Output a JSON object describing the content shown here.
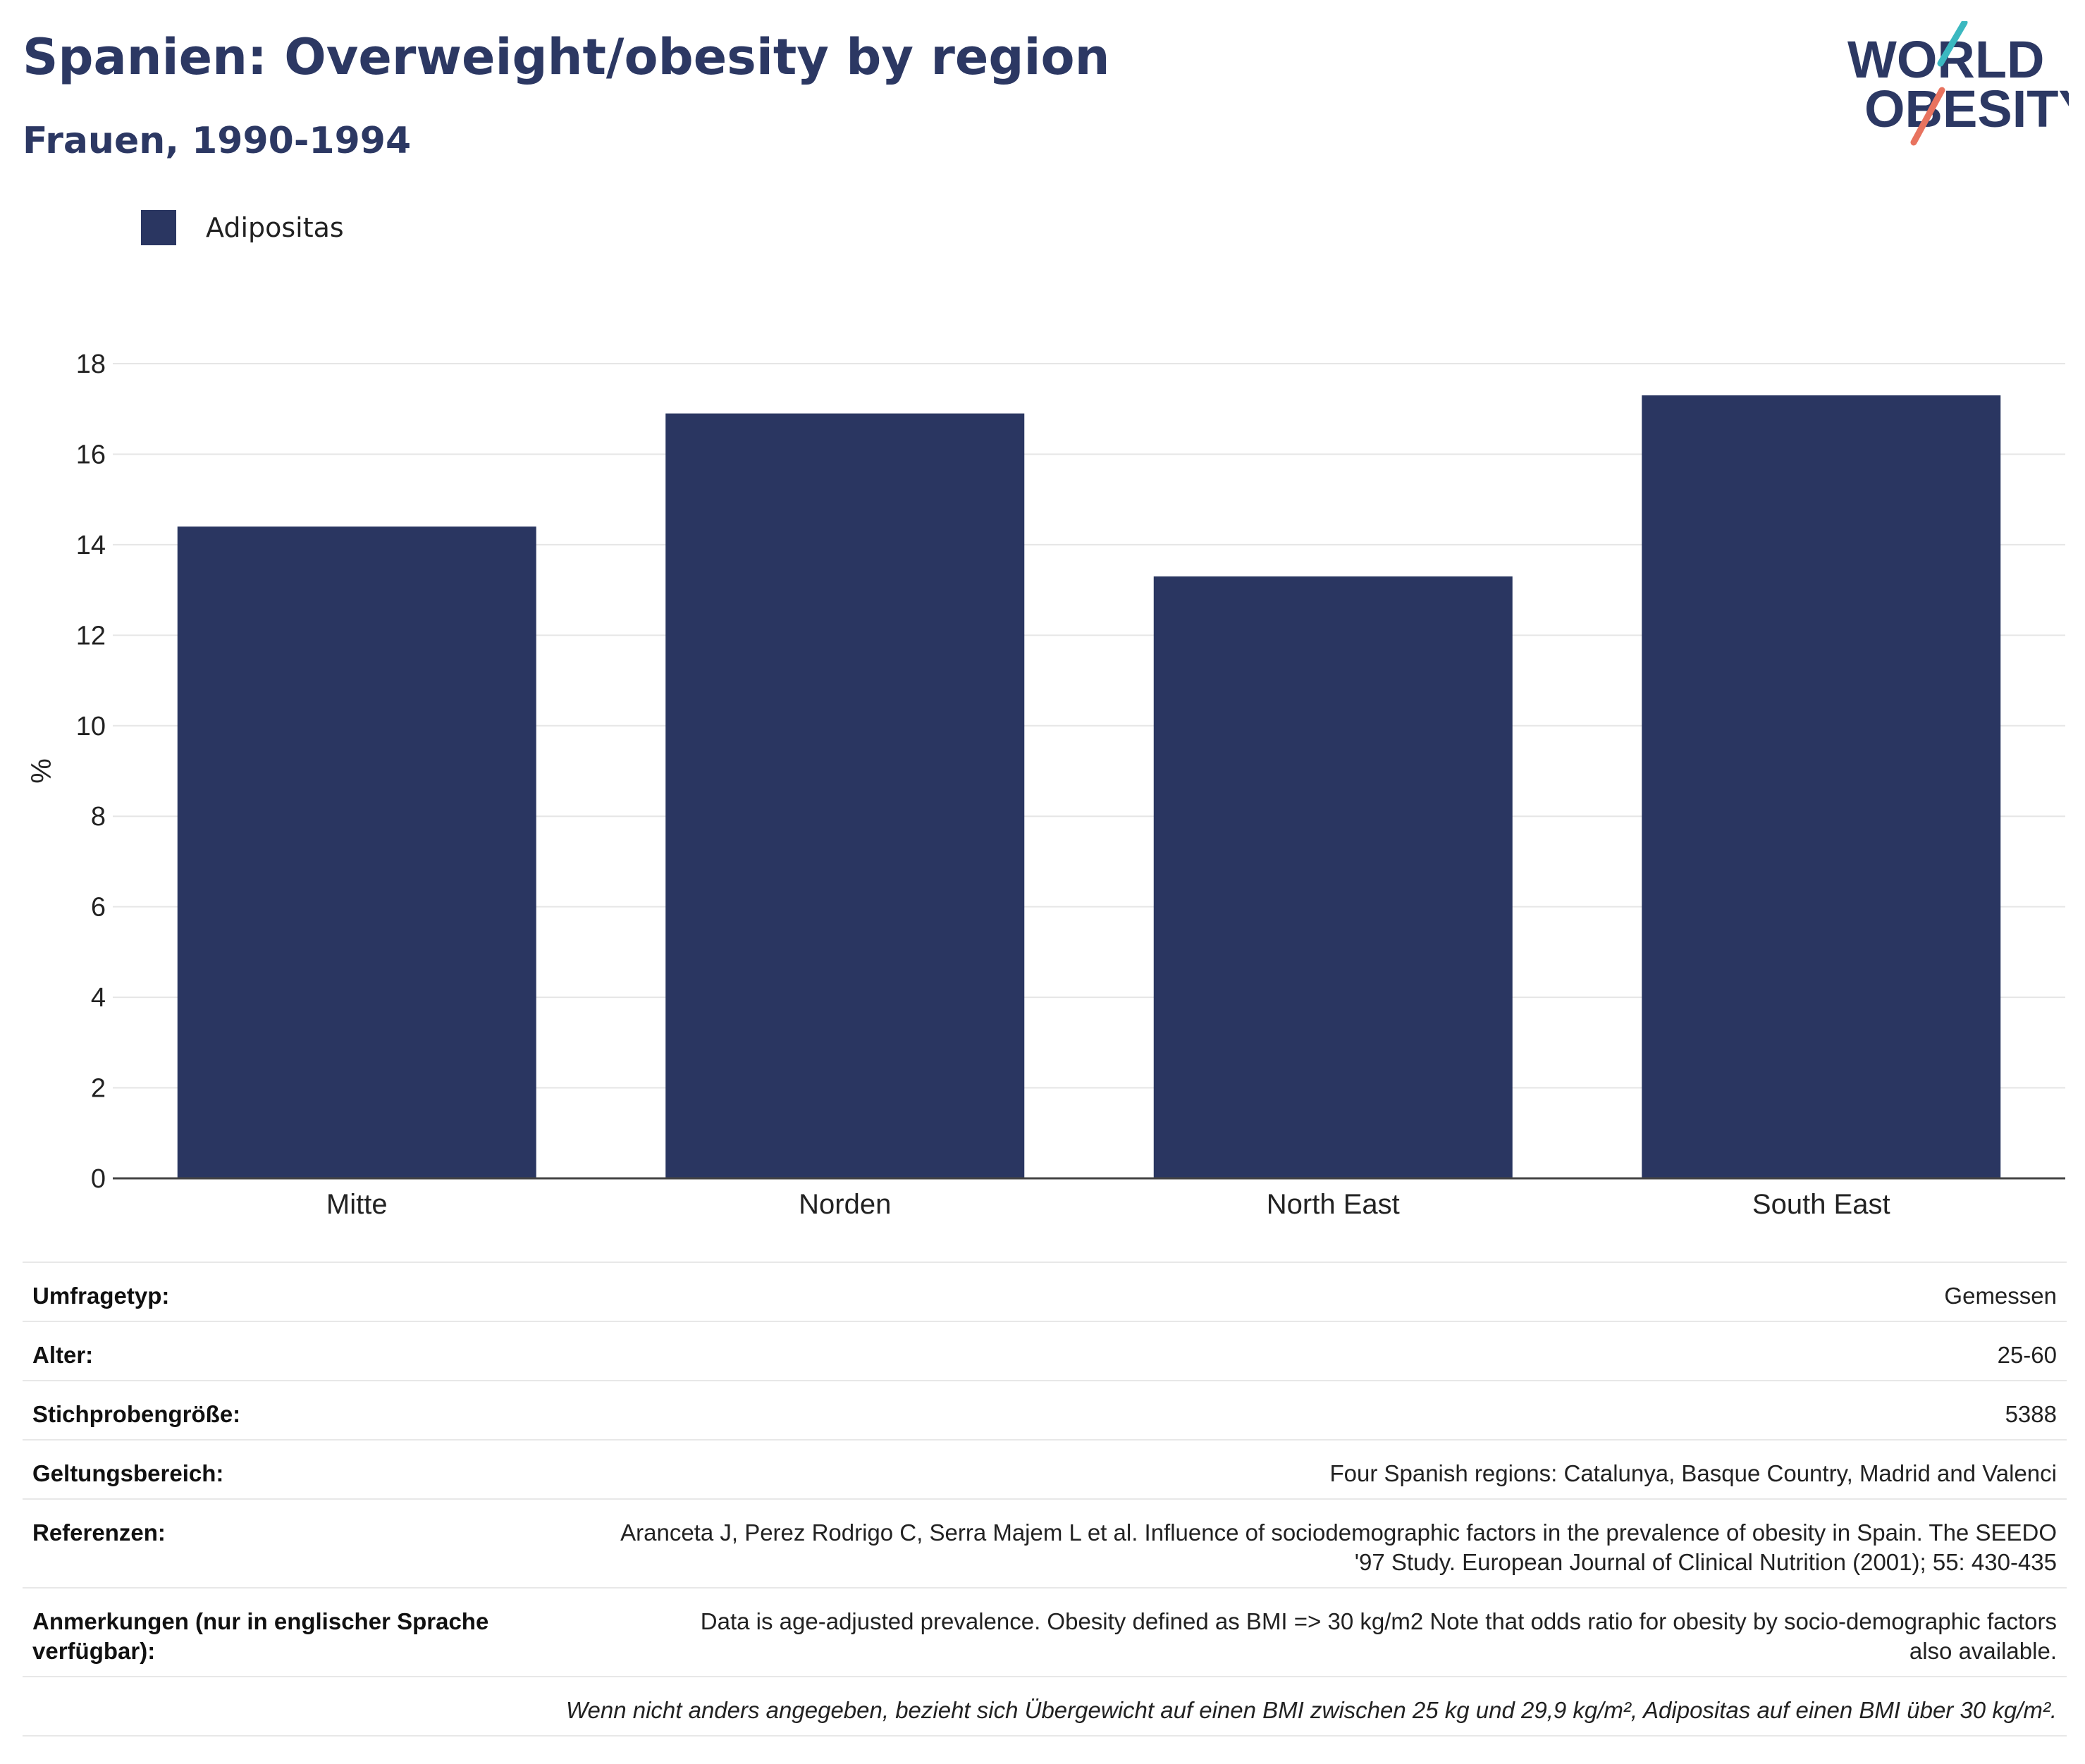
{
  "header": {
    "title": "Spanien: Overweight/obesity by region",
    "subtitle": "Frauen, 1990-1994"
  },
  "logo": {
    "line1": "WORLD",
    "line2": "OBESITY",
    "accent_teal": "#3bb8c0",
    "accent_coral": "#e8735f",
    "text_color": "#2c3863"
  },
  "legend": {
    "label": "Adipositas",
    "color": "#2a3661"
  },
  "chart_data": {
    "type": "bar",
    "categories": [
      "Mitte",
      "Norden",
      "North East",
      "South East"
    ],
    "series": [
      {
        "name": "Adipositas",
        "values": [
          14.4,
          16.9,
          13.3,
          17.3
        ],
        "color": "#2a3661"
      }
    ],
    "ylabel": "%",
    "ylim": [
      0,
      18
    ],
    "yticks": [
      0,
      2,
      4,
      6,
      8,
      10,
      12,
      14,
      16,
      18
    ],
    "grid": true
  },
  "info": {
    "rows": [
      {
        "key": "Umfragetyp:",
        "value": "Gemessen"
      },
      {
        "key": "Alter:",
        "value": "25-60"
      },
      {
        "key": "Stichprobengröße:",
        "value": "5388"
      },
      {
        "key": "Geltungsbereich:",
        "value": "Four Spanish regions: Catalunya, Basque Country, Madrid and Valenci"
      },
      {
        "key": "Referenzen:",
        "value_line1": "Aranceta J, Perez Rodrigo C, Serra Majem L et al. Influence of sociodemographic factors in the prevalence of obesity in Spain. The SEEDO",
        "value_line2": "'97 Study. European Journal of Clinical Nutrition (2001); 55: 430-435"
      },
      {
        "key_line1": "Anmerkungen (nur in englischer Sprache",
        "key_line2": "verfügbar):",
        "value_line1": "Data is age-adjusted prevalence. Obesity defined as BMI => 30 kg/m2 Note that odds ratio for obesity by socio-demographic factors",
        "value_line2": "also available."
      }
    ],
    "footnote": "Wenn nicht anders angegeben, bezieht sich Übergewicht auf einen BMI zwischen 25 kg und 29,9 kg/m², Adipositas auf einen BMI über 30 kg/m²."
  }
}
